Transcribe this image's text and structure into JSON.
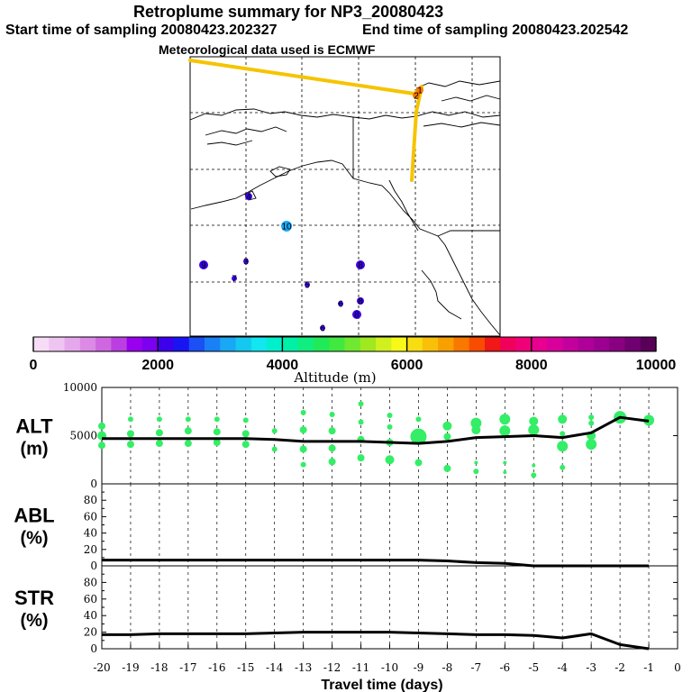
{
  "header": {
    "title": "Retroplume summary for NP3_20080423",
    "start_time": "Start time of sampling 20080423.202327",
    "end_time": "End time of sampling 20080423.202542",
    "met_data": "Meteorological data used is ECMWF"
  },
  "map": {
    "trajectory_color": "#f5c400",
    "markers": [
      {
        "label": "1",
        "value": 6800,
        "size": 3
      },
      {
        "label": "2",
        "value": 6800,
        "size": 3
      },
      {
        "label": "3",
        "value": 2200,
        "size": 2
      },
      {
        "label": "4",
        "value": 2000,
        "size": 3
      },
      {
        "label": "5",
        "value": 2100,
        "size": 2
      },
      {
        "label": "6",
        "value": 2000,
        "size": 2
      },
      {
        "label": "6",
        "value": 2100,
        "size": 2
      },
      {
        "label": "7",
        "value": 2200,
        "size": 2
      },
      {
        "label": "8",
        "value": 2200,
        "size": 4
      },
      {
        "label": "8",
        "value": 2200,
        "size": 3
      },
      {
        "label": "8",
        "value": 2100,
        "size": 4
      },
      {
        "label": "9",
        "value": 2200,
        "size": 4
      },
      {
        "label": "10",
        "value": 3100,
        "size": 5
      }
    ]
  },
  "colorbar": {
    "title": "Altitude (m)",
    "min": 0,
    "max": 10000,
    "tick_labels": [
      "0",
      "2000",
      "4000",
      "6000",
      "8000",
      "10000"
    ],
    "colors": [
      "#f6dcf6",
      "#eec4f0",
      "#e6a8ec",
      "#dc8ae6",
      "#cf68e0",
      "#bb3fe0",
      "#9900ee",
      "#7a00ef",
      "#3c00ec",
      "#1a14f2",
      "#1a50f4",
      "#1a80f5",
      "#18a8f4",
      "#14c8f0",
      "#12e6f0",
      "#00f0cc",
      "#00f0a8",
      "#10ee80",
      "#20ea58",
      "#40e840",
      "#70e830",
      "#a0e820",
      "#d0f020",
      "#f8f818",
      "#f8de10",
      "#f8c008",
      "#f8a000",
      "#f87800",
      "#f84c00",
      "#f01818",
      "#f0005a",
      "#f00078",
      "#e80090",
      "#d8009a",
      "#c4009c",
      "#b0009a",
      "#9c0090",
      "#880080",
      "#700070",
      "#580058"
    ]
  },
  "chart_data": [
    {
      "type": "line",
      "name": "ALT",
      "ylabel_line1": "ALT",
      "ylabel_line2": "(m)",
      "ylim": [
        0,
        10000
      ],
      "yticks": [
        "10000",
        "5000",
        "0"
      ],
      "x": [
        -20,
        -19,
        -18,
        -17,
        -16,
        -15,
        -14,
        -13,
        -12,
        -11,
        -10,
        -9,
        -8,
        -7,
        -6,
        -5,
        -4,
        -3,
        -2,
        -1
      ],
      "values": [
        4700,
        4700,
        4700,
        4700,
        4700,
        4700,
        4600,
        4400,
        4400,
        4400,
        4300,
        4200,
        4400,
        4800,
        4900,
        5000,
        4800,
        5300,
        6900,
        6500
      ],
      "scatter_color": "#33ee66",
      "scatter": [
        {
          "x": -20.0,
          "y": 6000,
          "r": 4
        },
        {
          "x": -20.0,
          "y": 5000,
          "r": 5
        },
        {
          "x": -20.0,
          "y": 4000,
          "r": 4
        },
        {
          "x": -19.0,
          "y": 6700,
          "r": 3
        },
        {
          "x": -19.0,
          "y": 5200,
          "r": 4
        },
        {
          "x": -19.0,
          "y": 4100,
          "r": 4
        },
        {
          "x": -18.0,
          "y": 6700,
          "r": 3
        },
        {
          "x": -18.0,
          "y": 5300,
          "r": 4
        },
        {
          "x": -18.0,
          "y": 4200,
          "r": 4
        },
        {
          "x": -17.0,
          "y": 6700,
          "r": 3
        },
        {
          "x": -17.0,
          "y": 5500,
          "r": 4
        },
        {
          "x": -17.0,
          "y": 4200,
          "r": 4
        },
        {
          "x": -16.0,
          "y": 6700,
          "r": 3
        },
        {
          "x": -16.0,
          "y": 5400,
          "r": 4
        },
        {
          "x": -16.0,
          "y": 4300,
          "r": 4
        },
        {
          "x": -15.0,
          "y": 6600,
          "r": 3
        },
        {
          "x": -15.0,
          "y": 5200,
          "r": 4
        },
        {
          "x": -15.0,
          "y": 4100,
          "r": 4
        },
        {
          "x": -14.0,
          "y": 5500,
          "r": 3
        },
        {
          "x": -14.0,
          "y": 3600,
          "r": 3
        },
        {
          "x": -13.0,
          "y": 7400,
          "r": 3
        },
        {
          "x": -13.0,
          "y": 5600,
          "r": 4
        },
        {
          "x": -13.0,
          "y": 3600,
          "r": 4
        },
        {
          "x": -13.0,
          "y": 2000,
          "r": 3
        },
        {
          "x": -12.0,
          "y": 7200,
          "r": 3
        },
        {
          "x": -12.0,
          "y": 5500,
          "r": 4
        },
        {
          "x": -12.0,
          "y": 3700,
          "r": 4
        },
        {
          "x": -12.0,
          "y": 2300,
          "r": 4
        },
        {
          "x": -11.0,
          "y": 8300,
          "r": 3
        },
        {
          "x": -11.0,
          "y": 6400,
          "r": 3
        },
        {
          "x": -11.0,
          "y": 4600,
          "r": 4
        },
        {
          "x": -11.0,
          "y": 2700,
          "r": 4
        },
        {
          "x": -10.0,
          "y": 7100,
          "r": 3
        },
        {
          "x": -10.0,
          "y": 5900,
          "r": 3
        },
        {
          "x": -10.0,
          "y": 4300,
          "r": 4
        },
        {
          "x": -10.0,
          "y": 2500,
          "r": 5
        },
        {
          "x": -9.0,
          "y": 6700,
          "r": 3
        },
        {
          "x": -9.0,
          "y": 4900,
          "r": 9
        },
        {
          "x": -9.0,
          "y": 2200,
          "r": 4
        },
        {
          "x": -8.0,
          "y": 6000,
          "r": 5
        },
        {
          "x": -8.0,
          "y": 4900,
          "r": 4
        },
        {
          "x": -8.0,
          "y": 1600,
          "r": 4
        },
        {
          "x": -7.0,
          "y": 6300,
          "r": 6
        },
        {
          "x": -7.0,
          "y": 5600,
          "r": 5
        },
        {
          "x": -7.0,
          "y": 2200,
          "r": 2
        },
        {
          "x": -7.0,
          "y": 1300,
          "r": 3
        },
        {
          "x": -6.0,
          "y": 6700,
          "r": 6
        },
        {
          "x": -6.0,
          "y": 5500,
          "r": 6
        },
        {
          "x": -6.0,
          "y": 2200,
          "r": 2
        },
        {
          "x": -6.0,
          "y": 1200,
          "r": 2
        },
        {
          "x": -5.0,
          "y": 6500,
          "r": 5
        },
        {
          "x": -5.0,
          "y": 5600,
          "r": 6
        },
        {
          "x": -5.0,
          "y": 1900,
          "r": 2
        },
        {
          "x": -5.0,
          "y": 900,
          "r": 3
        },
        {
          "x": -4.0,
          "y": 6700,
          "r": 5
        },
        {
          "x": -4.0,
          "y": 5200,
          "r": 3
        },
        {
          "x": -4.0,
          "y": 3900,
          "r": 6
        },
        {
          "x": -4.0,
          "y": 1700,
          "r": 3
        },
        {
          "x": -3.0,
          "y": 6900,
          "r": 3
        },
        {
          "x": -3.0,
          "y": 6300,
          "r": 3
        },
        {
          "x": -3.0,
          "y": 5000,
          "r": 5
        },
        {
          "x": -3.0,
          "y": 4100,
          "r": 6
        },
        {
          "x": -2.0,
          "y": 6900,
          "r": 7
        },
        {
          "x": -1.0,
          "y": 6600,
          "r": 6
        }
      ]
    },
    {
      "type": "line",
      "name": "ABL",
      "ylabel_line1": "ABL",
      "ylabel_line2": "(%)",
      "ylim": [
        0,
        100
      ],
      "yticks": [
        "80",
        "60",
        "40",
        "20",
        "0"
      ],
      "x": [
        -20,
        -19,
        -18,
        -17,
        -16,
        -15,
        -14,
        -13,
        -12,
        -11,
        -10,
        -9,
        -8,
        -7,
        -6,
        -5,
        -4,
        -3,
        -2,
        -1
      ],
      "values": [
        7,
        7,
        7,
        7,
        7,
        7,
        7,
        7,
        7,
        7,
        7,
        7,
        6,
        4,
        3,
        0,
        0,
        0,
        0,
        0
      ]
    },
    {
      "type": "line",
      "name": "STR",
      "ylabel_line1": "STR",
      "ylabel_line2": "(%)",
      "ylim": [
        0,
        100
      ],
      "yticks": [
        "80",
        "60",
        "40",
        "20",
        "0"
      ],
      "xlabel": "Travel time (days)",
      "xtick_labels": [
        "-20",
        "-19",
        "-18",
        "-17",
        "-16",
        "-15",
        "-14",
        "-13",
        "-12",
        "-11",
        "-10",
        "-9",
        "-8",
        "-7",
        "-6",
        "-5",
        "-4",
        "-3",
        "-2",
        "-1",
        "0"
      ],
      "x": [
        -20,
        -19,
        -18,
        -17,
        -16,
        -15,
        -14,
        -13,
        -12,
        -11,
        -10,
        -9,
        -8,
        -7,
        -6,
        -5,
        -4,
        -3,
        -2,
        -1
      ],
      "values": [
        17,
        17,
        18,
        18,
        18,
        18,
        19,
        20,
        20,
        20,
        20,
        19,
        18,
        17,
        17,
        16,
        13,
        18,
        5,
        0
      ]
    }
  ]
}
